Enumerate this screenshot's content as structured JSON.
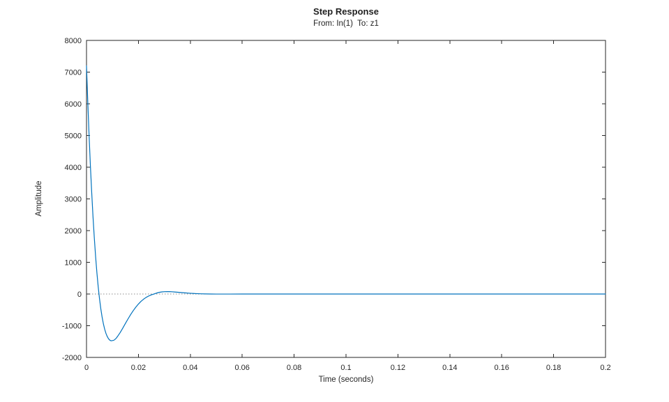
{
  "window": {
    "background": "#ffffff"
  },
  "chart_data": {
    "type": "line",
    "title": "Step Response",
    "subtitle": "From: In(1)  To: z1",
    "xlabel": "Time (seconds)",
    "ylabel": "Amplitude",
    "xlim": [
      0,
      0.2
    ],
    "ylim": [
      -2000,
      8000
    ],
    "x_ticks": [
      0,
      0.02,
      0.04,
      0.06,
      0.08,
      0.1,
      0.12,
      0.14,
      0.16,
      0.18,
      0.2
    ],
    "x_tick_labels": [
      "0",
      "0.02",
      "0.04",
      "0.06",
      "0.08",
      "0.1",
      "0.12",
      "0.14",
      "0.16",
      "0.18",
      "0.2"
    ],
    "y_ticks": [
      -2000,
      -1000,
      0,
      1000,
      2000,
      3000,
      4000,
      5000,
      6000,
      7000,
      8000
    ],
    "y_tick_labels": [
      "-2000",
      "-1000",
      "0",
      "1000",
      "2000",
      "3000",
      "4000",
      "5000",
      "6000",
      "7000",
      "8000"
    ],
    "grid": false,
    "box": true,
    "legend": "none",
    "colors": {
      "line": "#0072BD",
      "steady_state": "#8c8c8c",
      "axis": "#262626",
      "text": "#262626"
    },
    "steady_state_line": {
      "y": 0,
      "style": "dotted"
    },
    "series": [
      {
        "name": "step-response",
        "x": [
          0,
          0.0005,
          0.001,
          0.0015,
          0.002,
          0.0025,
          0.003,
          0.0035,
          0.004,
          0.0045,
          0.005,
          0.0055,
          0.006,
          0.0065,
          0.007,
          0.0075,
          0.008,
          0.0085,
          0.009,
          0.0095,
          0.0105,
          0.011,
          0.0115,
          0.012,
          0.013,
          0.014,
          0.015,
          0.016,
          0.017,
          0.018,
          0.019,
          0.02,
          0.021,
          0.022,
          0.023,
          0.024,
          0.025,
          0.026,
          0.027,
          0.028,
          0.029,
          0.03,
          0.031,
          0.032,
          0.033,
          0.034,
          0.036,
          0.038,
          0.04,
          0.042,
          0.044,
          0.046,
          0.048,
          0.05,
          0.055,
          0.06,
          0.07,
          0.08,
          0.1,
          0.12,
          0.14,
          0.16,
          0.18,
          0.2
        ],
        "y": [
          7198,
          6044,
          4991,
          4044,
          3211,
          2443,
          1780,
          1190,
          677,
          235,
          -141,
          -459,
          -723,
          -938,
          -1110,
          -1243,
          -1343,
          -1413,
          -1458,
          -1476,
          -1460,
          -1430,
          -1390,
          -1333,
          -1212,
          -1073,
          -927,
          -786,
          -650,
          -526,
          -414,
          -317,
          -233,
          -163,
          -106,
          -61,
          -26,
          0,
          30,
          52,
          66,
          73,
          76,
          75,
          70,
          64,
          49,
          35,
          23,
          13,
          7,
          3,
          0,
          -1,
          -1,
          0,
          0,
          0,
          0,
          0,
          0,
          0,
          0,
          0
        ]
      }
    ]
  }
}
